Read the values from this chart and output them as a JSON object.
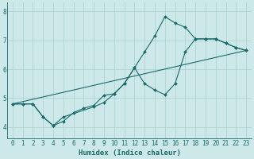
{
  "xlabel": "Humidex (Indice chaleur)",
  "xlim_min": -0.5,
  "xlim_max": 23.5,
  "ylim_min": 3.6,
  "ylim_max": 8.3,
  "xticks": [
    0,
    1,
    2,
    3,
    4,
    5,
    6,
    7,
    8,
    9,
    10,
    11,
    12,
    13,
    14,
    15,
    16,
    17,
    18,
    19,
    20,
    21,
    22,
    23
  ],
  "yticks": [
    4,
    5,
    6,
    7,
    8
  ],
  "background_color": "#cce8e8",
  "grid_color": "#aacfcf",
  "line_color": "#1a6b6b",
  "line1_x": [
    0,
    1,
    2,
    3,
    4,
    5,
    6,
    7,
    8,
    9,
    10,
    11,
    12,
    13,
    14,
    15,
    16,
    17,
    18,
    19,
    20,
    21,
    22,
    23
  ],
  "line1_y": [
    4.8,
    4.8,
    4.8,
    4.35,
    4.05,
    4.2,
    4.5,
    4.65,
    4.75,
    5.1,
    5.15,
    5.5,
    6.05,
    6.6,
    7.15,
    7.82,
    7.6,
    7.45,
    7.05,
    7.05,
    7.05,
    6.9,
    6.75,
    6.65
  ],
  "line2_x": [
    0,
    1,
    2,
    3,
    4,
    5,
    8,
    9,
    10,
    11,
    12,
    13,
    14,
    15,
    16,
    17,
    18,
    19,
    20,
    21,
    22,
    23
  ],
  "line2_y": [
    4.8,
    4.8,
    4.8,
    4.35,
    4.05,
    4.35,
    4.7,
    4.85,
    5.15,
    5.5,
    6.05,
    5.5,
    5.28,
    5.12,
    5.5,
    6.6,
    7.05,
    7.05,
    7.05,
    6.9,
    6.75,
    6.65
  ],
  "line3_x": [
    0,
    23
  ],
  "line3_y": [
    4.8,
    6.65
  ]
}
